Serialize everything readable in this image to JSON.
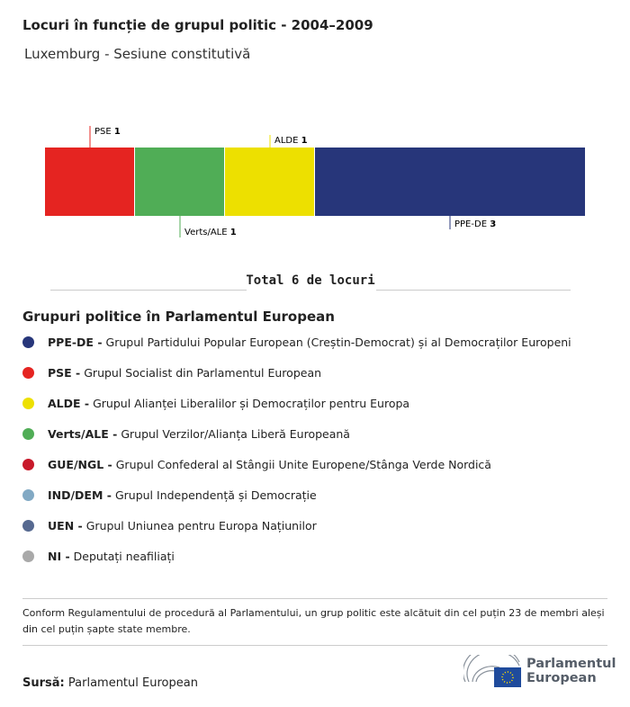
{
  "title": "Locuri în funcție de grupul politic - 2004–2009",
  "subtitle": "Luxemburg - Sesiune constitutivă",
  "chart_data": {
    "type": "bar",
    "stacked": true,
    "orientation": "horizontal",
    "categories": [
      "PSE",
      "Verts/ALE",
      "ALDE",
      "PPE-DE"
    ],
    "values": [
      1,
      1,
      1,
      3
    ],
    "colors": [
      "#e52421",
      "#50ad56",
      "#ede000",
      "#27367a"
    ],
    "label_positions": [
      "top",
      "bottom",
      "top",
      "bottom"
    ],
    "total_label": "Total 6 de locuri"
  },
  "legend": {
    "title": "Grupuri politice în Parlamentul European",
    "items": [
      {
        "abbr": "PPE-DE -",
        "name": "Grupul Partidului Popular European (Creștin-Democrat) și al Democraților Europeni",
        "color": "#27367a"
      },
      {
        "abbr": "PSE -",
        "name": "Grupul Socialist din Parlamentul European",
        "color": "#e52421"
      },
      {
        "abbr": "ALDE -",
        "name": "Grupul Alianței Liberalilor și Democraților pentru Europa",
        "color": "#ede000"
      },
      {
        "abbr": "Verts/ALE -",
        "name": "Grupul Verzilor/Alianța Liberă Europeană",
        "color": "#50ad56"
      },
      {
        "abbr": "GUE/NGL -",
        "name": "Grupul Confederal al Stângii Unite Europene/Stânga Verde Nordică",
        "color": "#c8192a"
      },
      {
        "abbr": "IND/DEM -",
        "name": "Grupul Independență și Democrație",
        "color": "#82a9c4"
      },
      {
        "abbr": "UEN -",
        "name": "Grupul Uniunea pentru Europa Națiunilor",
        "color": "#566990"
      },
      {
        "abbr": "NI -",
        "name": "Deputați neafiliați",
        "color": "#a9a9a9"
      }
    ]
  },
  "note": "Conform Regulamentului de procedură al Parlamentului, un grup politic este alcătuit din cel puțin 23 de membri aleși din cel puțin șapte state membre.",
  "source": {
    "label": "Sursă:",
    "value": "Parlamentul European"
  },
  "logo": {
    "line1": "Parlamentul",
    "line2": "European"
  }
}
